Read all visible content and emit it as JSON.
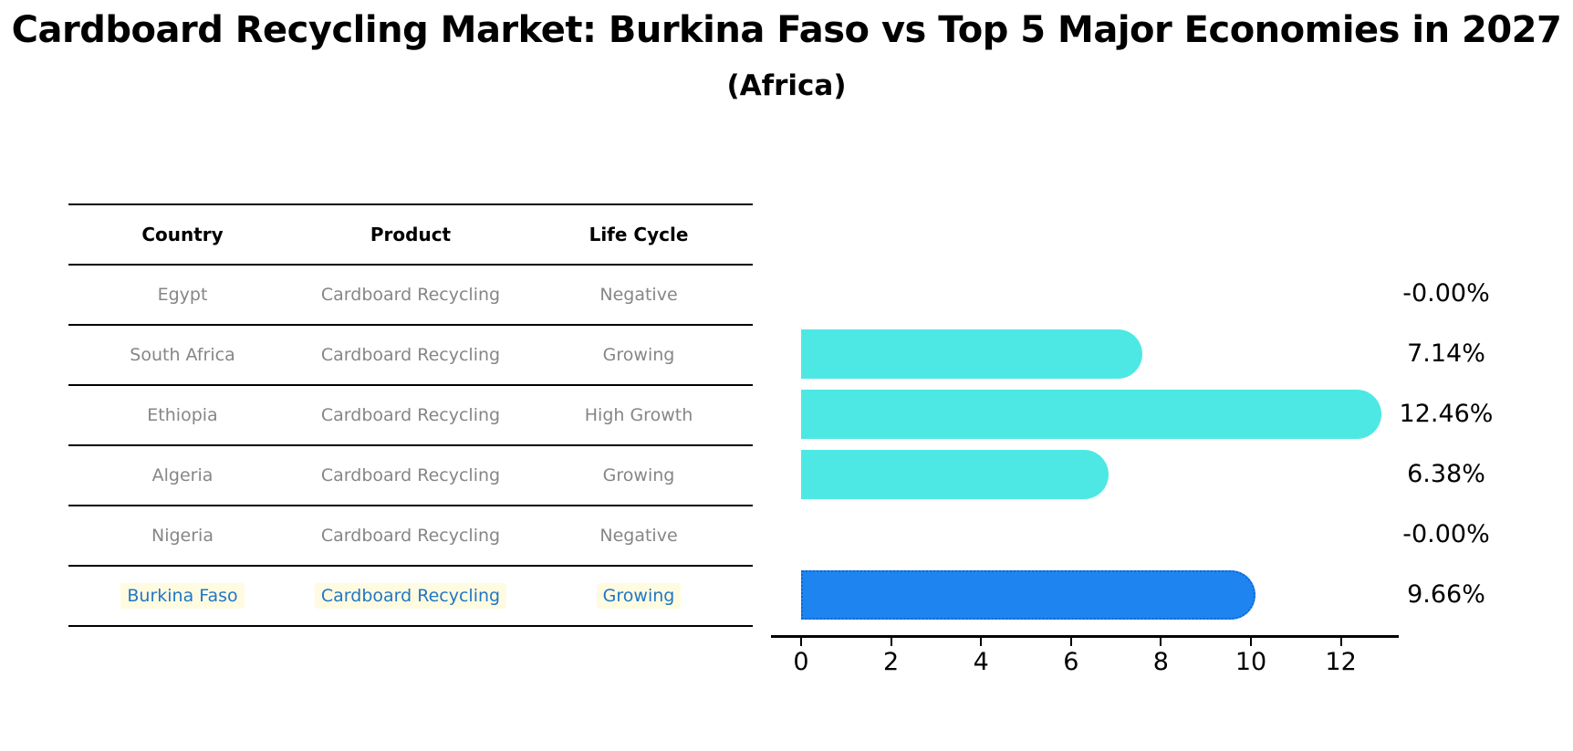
{
  "title": "Cardboard Recycling Market: Burkina Faso vs Top 5 Major Economies in 2027",
  "subtitle": "(Africa)",
  "table": {
    "columns": [
      "Country",
      "Product",
      "Life Cycle"
    ],
    "rows": [
      {
        "country": "Egypt",
        "product": "Cardboard Recycling",
        "life_cycle": "Negative",
        "highlight": false
      },
      {
        "country": "South Africa",
        "product": "Cardboard Recycling",
        "life_cycle": "Growing",
        "highlight": false
      },
      {
        "country": "Ethiopia",
        "product": "Cardboard Recycling",
        "life_cycle": "High Growth",
        "highlight": false
      },
      {
        "country": "Algeria",
        "product": "Cardboard Recycling",
        "life_cycle": "Growing",
        "highlight": false
      },
      {
        "country": "Nigeria",
        "product": "Cardboard Recycling",
        "life_cycle": "Negative",
        "highlight": false
      },
      {
        "country": "Burkina Faso",
        "product": "Cardboard Recycling",
        "life_cycle": "Growing",
        "highlight": true
      }
    ]
  },
  "chart_data": {
    "type": "bar",
    "orientation": "horizontal",
    "title": "Cardboard Recycling Market: Burkina Faso vs Top 5 Major Economies in 2027",
    "subtitle": "(Africa)",
    "categories": [
      "Egypt",
      "South Africa",
      "Ethiopia",
      "Algeria",
      "Nigeria",
      "Burkina Faso"
    ],
    "values": [
      0,
      7.14,
      12.46,
      6.38,
      0,
      9.66
    ],
    "value_labels": [
      "-0.00%",
      "7.14%",
      "12.46%",
      "6.38%",
      "-0.00%",
      "9.66%"
    ],
    "x_ticks": [
      0,
      2,
      4,
      6,
      8,
      10,
      12
    ],
    "xlim": [
      -0.65,
      13.3
    ],
    "grid": false,
    "legend": false,
    "highlight_category": "Burkina Faso"
  },
  "colors": {
    "bar": "#4DE8E4",
    "highlight_bar": "#1E85F0",
    "highlight_bar_border": "#0F66D6",
    "highlight_text": "#2176C7",
    "row_text": "#868686",
    "axis": "#000000"
  }
}
